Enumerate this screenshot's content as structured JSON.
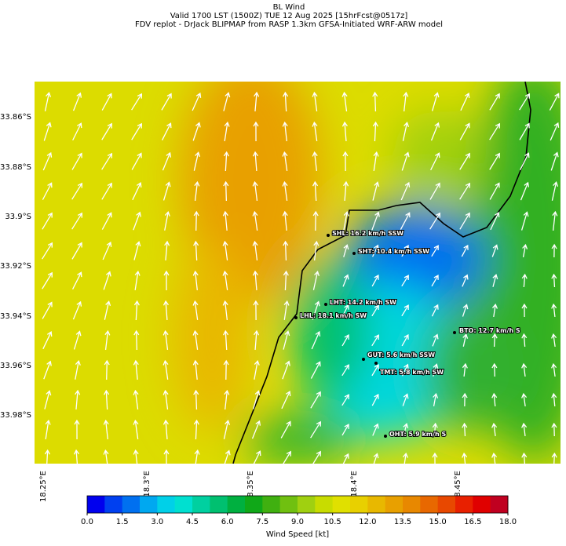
{
  "header": {
    "title": "BL Wind",
    "subtitle": "Valid 1700 LST (1500Z) TUE 12 Aug 2025 [15hrFcst@0517z]",
    "source": "FDV replot - DrJack BLIPMAP from RASP 1.3km GFSA-Initiated WRF-ARW model"
  },
  "map": {
    "lat_labels": [
      "33.86°S",
      "33.88°S",
      "33.9°S",
      "33.92°S",
      "33.94°S",
      "33.96°S",
      "33.98°S"
    ],
    "lon_labels": [
      "18.25°E",
      "18.3°E",
      "18.35°E",
      "18.4°E",
      "18.45°E"
    ],
    "stations": [
      "SHL: 16.2 km/h SSW",
      "SHT: 10.4 km/h SSW",
      "LHT: 14.2 km/h SW",
      "LHL: 18.1 km/h SW",
      "BTO: 12.7 km/h S",
      "GUT: 5.6 km/h SSW",
      "TMT: 5.8 km/h SW",
      "OHT: 5.9 km/h S"
    ]
  },
  "colorbar": {
    "label": "Wind Speed [kt]",
    "range": [
      0,
      18
    ],
    "colors": [
      "#0000ee",
      "#0040f0",
      "#0070f0",
      "#00a8f0",
      "#00d0e8",
      "#00e0d0",
      "#00d0a0",
      "#00c070",
      "#00b040",
      "#10a818",
      "#40b010",
      "#70c010",
      "#a0d010",
      "#c8dc00",
      "#e0e000",
      "#e8d000",
      "#e8b800",
      "#e8a000",
      "#e88800",
      "#e86800",
      "#e84800",
      "#e82000",
      "#e00000",
      "#c00020"
    ],
    "ticks": [
      {
        "value": 0,
        "label": "0.0"
      },
      1.5,
      {
        "value": 3,
        "label": "3.0"
      },
      4.5,
      {
        "value": 6,
        "label": "6.0"
      },
      7.5,
      {
        "value": 9,
        "label": "9.0"
      },
      10.5,
      {
        "value": 12,
        "label": "12.0"
      },
      13.5,
      {
        "value": 15,
        "label": "15.0"
      },
      16.5,
      {
        "value": 18,
        "label": "18.0"
      }
    ]
  }
}
